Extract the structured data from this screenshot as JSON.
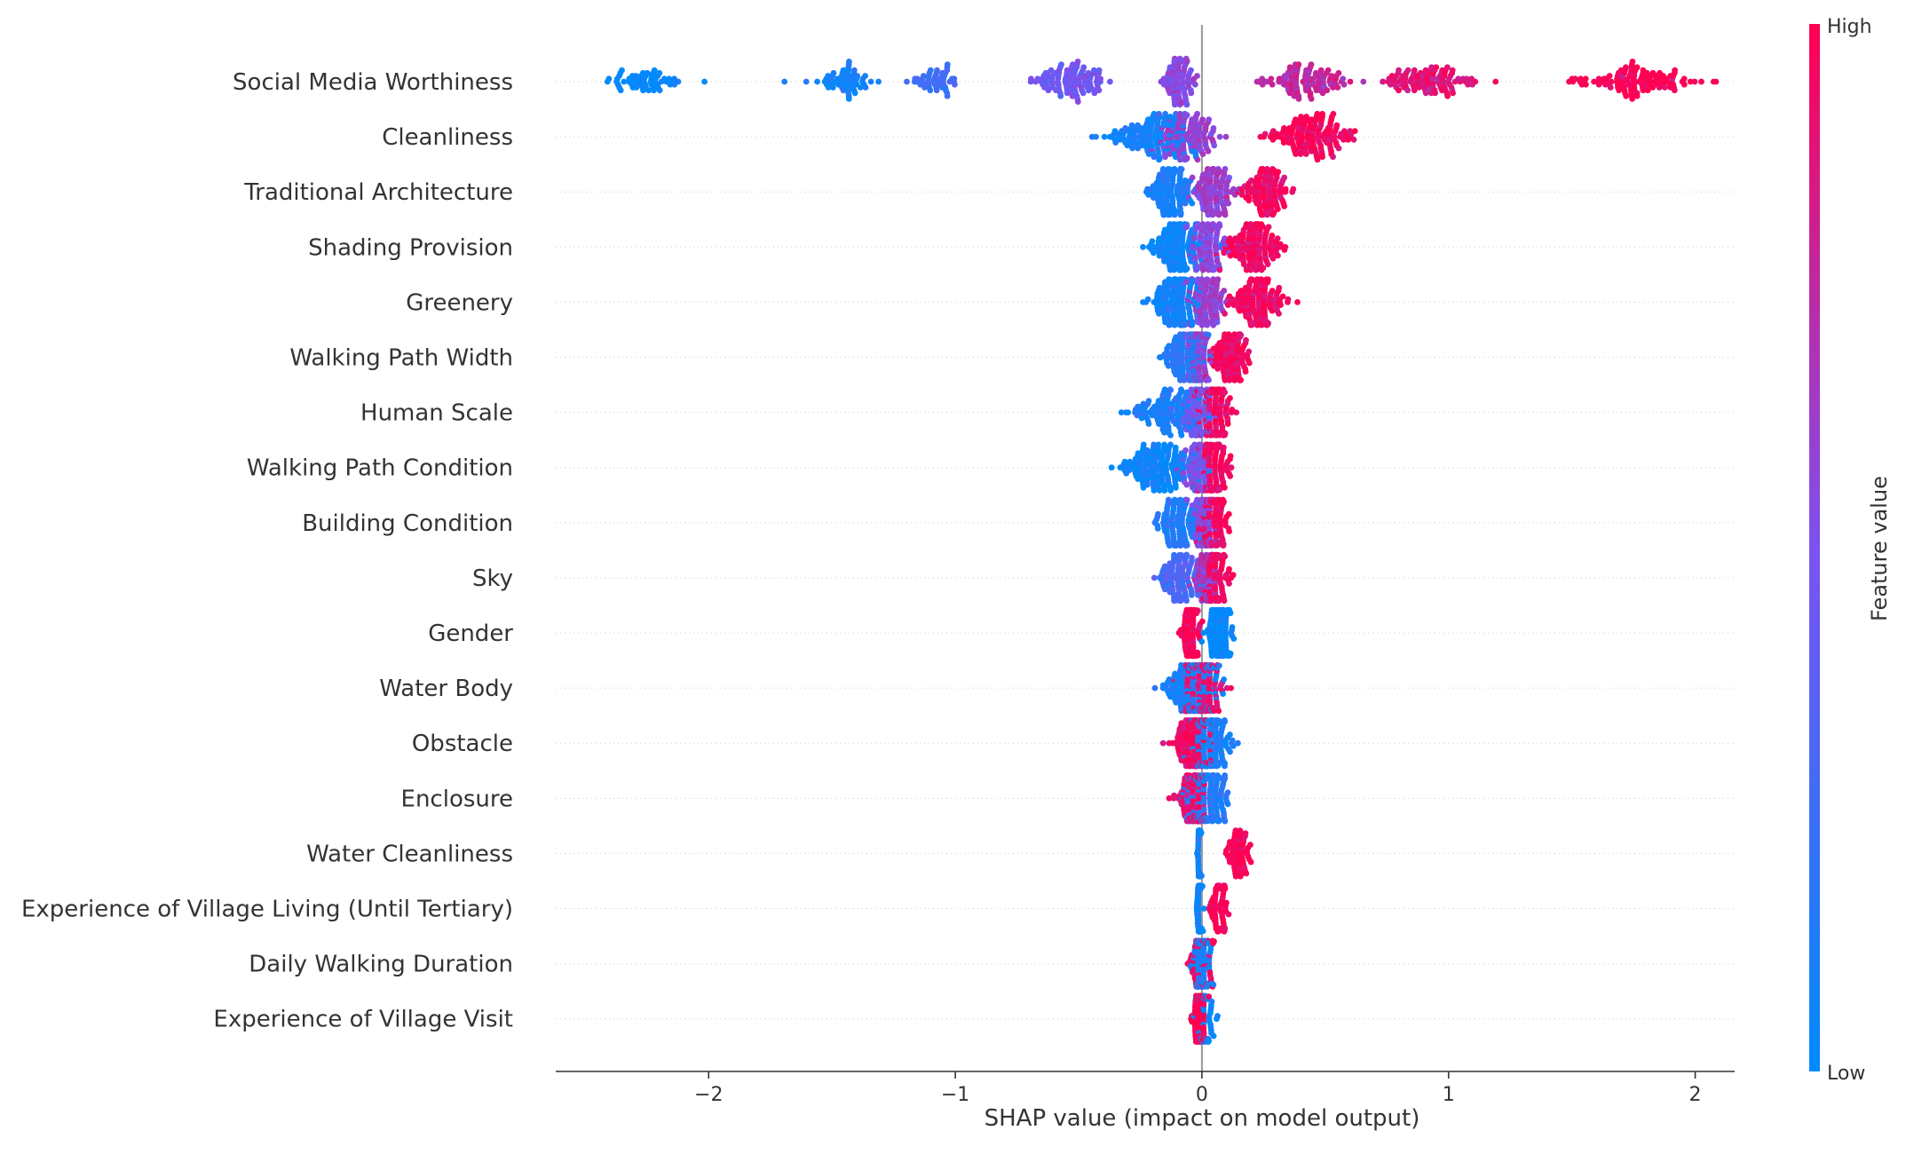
{
  "colors": {
    "low": "#008bfb",
    "mid": "#7c52f0",
    "high": "#ff0052",
    "axis": "#333333",
    "grid": "#cccccc",
    "zero_line": "#999999"
  },
  "chart_data": {
    "type": "scatter",
    "subtype": "shap-beeswarm-summary",
    "xlabel": "SHAP value (impact on model output)",
    "ylabel": "",
    "xlim": [
      -2.62,
      2.16
    ],
    "xticks": [
      -2,
      -1,
      0,
      1,
      2
    ],
    "xtick_labels": [
      "−2",
      "−1",
      "0",
      "1",
      "2"
    ],
    "colorbar": {
      "label": "Feature value",
      "high_label": "High",
      "low_label": "Low"
    },
    "features": [
      {
        "name": "Social Media Worthiness",
        "clusters": [
          {
            "center": -2.25,
            "spread": 0.14,
            "fv": 0.0,
            "n": 60
          },
          {
            "center": -1.45,
            "spread": 0.1,
            "fv": 0.08,
            "n": 60
          },
          {
            "center": -1.08,
            "spread": 0.09,
            "fv": 0.25,
            "n": 50
          },
          {
            "center": -0.53,
            "spread": 0.11,
            "fv": 0.45,
            "n": 110
          },
          {
            "center": -0.09,
            "spread": 0.05,
            "fv": 0.55,
            "n": 90
          },
          {
            "center": 0.42,
            "spread": 0.14,
            "fv": 0.75,
            "n": 110
          },
          {
            "center": 0.92,
            "spread": 0.15,
            "fv": 0.88,
            "n": 110
          },
          {
            "center": 1.76,
            "spread": 0.18,
            "fv": 1.0,
            "n": 120
          }
        ]
      },
      {
        "name": "Cleanliness",
        "clusters": [
          {
            "center": -0.2,
            "spread": 0.14,
            "fv": 0.08,
            "n": 140
          },
          {
            "center": -0.05,
            "spread": 0.1,
            "fv": 0.6,
            "n": 120
          },
          {
            "center": 0.45,
            "spread": 0.15,
            "fv": 0.97,
            "n": 150
          }
        ]
      },
      {
        "name": "Traditional Architecture",
        "clusters": [
          {
            "center": -0.13,
            "spread": 0.07,
            "fv": 0.1,
            "n": 130
          },
          {
            "center": 0.05,
            "spread": 0.07,
            "fv": 0.6,
            "n": 120
          },
          {
            "center": 0.26,
            "spread": 0.07,
            "fv": 0.95,
            "n": 120
          }
        ]
      },
      {
        "name": "Shading Provision",
        "clusters": [
          {
            "center": -0.1,
            "spread": 0.08,
            "fv": 0.05,
            "n": 150
          },
          {
            "center": 0.02,
            "spread": 0.06,
            "fv": 0.55,
            "n": 100
          },
          {
            "center": 0.21,
            "spread": 0.09,
            "fv": 0.95,
            "n": 150
          }
        ]
      },
      {
        "name": "Greenery",
        "clusters": [
          {
            "center": -0.1,
            "spread": 0.08,
            "fv": 0.08,
            "n": 150
          },
          {
            "center": 0.02,
            "spread": 0.06,
            "fv": 0.6,
            "n": 110
          },
          {
            "center": 0.23,
            "spread": 0.09,
            "fv": 0.95,
            "n": 140
          }
        ]
      },
      {
        "name": "Walking Path Width",
        "clusters": [
          {
            "center": -0.07,
            "spread": 0.07,
            "fv": 0.15,
            "n": 150
          },
          {
            "center": -0.01,
            "spread": 0.05,
            "fv": 0.6,
            "n": 100
          },
          {
            "center": 0.12,
            "spread": 0.06,
            "fv": 0.95,
            "n": 120
          }
        ]
      },
      {
        "name": "Human Scale",
        "clusters": [
          {
            "center": -0.14,
            "spread": 0.1,
            "fv": 0.1,
            "n": 120
          },
          {
            "center": -0.02,
            "spread": 0.05,
            "fv": 0.45,
            "n": 100
          },
          {
            "center": 0.05,
            "spread": 0.05,
            "fv": 0.95,
            "n": 130
          }
        ]
      },
      {
        "name": "Walking Path Condition",
        "clusters": [
          {
            "center": -0.18,
            "spread": 0.12,
            "fv": 0.05,
            "n": 160
          },
          {
            "center": -0.02,
            "spread": 0.04,
            "fv": 0.5,
            "n": 100
          },
          {
            "center": 0.05,
            "spread": 0.05,
            "fv": 0.95,
            "n": 130
          }
        ]
      },
      {
        "name": "Building Condition",
        "clusters": [
          {
            "center": -0.1,
            "spread": 0.07,
            "fv": 0.12,
            "n": 120
          },
          {
            "center": 0.01,
            "spread": 0.04,
            "fv": 0.55,
            "n": 80
          },
          {
            "center": 0.05,
            "spread": 0.04,
            "fv": 0.95,
            "n": 120
          }
        ]
      },
      {
        "name": "Sky",
        "clusters": [
          {
            "center": -0.09,
            "spread": 0.07,
            "fv": 0.3,
            "n": 110
          },
          {
            "center": 0.01,
            "spread": 0.04,
            "fv": 0.65,
            "n": 80
          },
          {
            "center": 0.06,
            "spread": 0.04,
            "fv": 0.95,
            "n": 120
          }
        ]
      },
      {
        "name": "Gender",
        "clusters": [
          {
            "center": -0.04,
            "spread": 0.03,
            "fv": 1.0,
            "n": 160
          },
          {
            "center": 0.07,
            "spread": 0.04,
            "fv": 0.0,
            "n": 160
          }
        ]
      },
      {
        "name": "Water Body",
        "clusters": [
          {
            "center": -0.04,
            "spread": 0.09,
            "fv": 0.1,
            "n": 200
          },
          {
            "center": 0.0,
            "spread": 0.07,
            "fv": 0.9,
            "n": 180
          }
        ]
      },
      {
        "name": "Obstacle",
        "clusters": [
          {
            "center": -0.03,
            "spread": 0.06,
            "fv": 0.95,
            "n": 180
          },
          {
            "center": 0.04,
            "spread": 0.06,
            "fv": 0.1,
            "n": 180
          }
        ]
      },
      {
        "name": "Enclosure",
        "clusters": [
          {
            "center": -0.03,
            "spread": 0.05,
            "fv": 0.9,
            "n": 140
          },
          {
            "center": 0.02,
            "spread": 0.07,
            "fv": 0.15,
            "n": 180
          }
        ]
      },
      {
        "name": "Water Cleanliness",
        "clusters": [
          {
            "center": -0.01,
            "spread": 0.005,
            "fv": 0.05,
            "n": 110
          },
          {
            "center": 0.15,
            "spread": 0.04,
            "fv": 1.0,
            "n": 70
          }
        ]
      },
      {
        "name": "Experience of Village Living (Until Tertiary)",
        "clusters": [
          {
            "center": -0.01,
            "spread": 0.008,
            "fv": 0.05,
            "n": 120
          },
          {
            "center": 0.07,
            "spread": 0.03,
            "fv": 1.0,
            "n": 70
          }
        ]
      },
      {
        "name": "Daily Walking Duration",
        "clusters": [
          {
            "center": 0.0,
            "spread": 0.03,
            "fv": 0.1,
            "n": 150
          },
          {
            "center": 0.0,
            "spread": 0.04,
            "fv": 0.95,
            "n": 60
          }
        ]
      },
      {
        "name": "Experience of Village Visit",
        "clusters": [
          {
            "center": -0.01,
            "spread": 0.02,
            "fv": 1.0,
            "n": 130
          },
          {
            "center": 0.01,
            "spread": 0.03,
            "fv": 0.05,
            "n": 60
          }
        ]
      }
    ]
  }
}
